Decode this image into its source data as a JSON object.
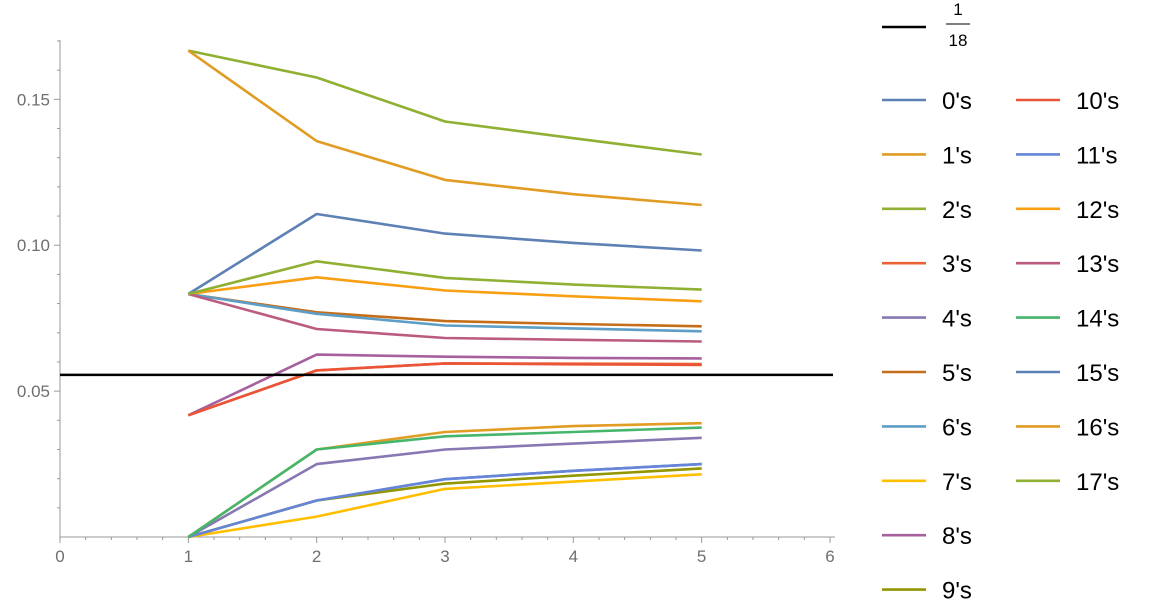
{
  "chart_data": {
    "type": "line",
    "xlim": [
      0,
      6
    ],
    "ylim": [
      0,
      0.17
    ],
    "x_ticks": [
      "0",
      "1",
      "2",
      "3",
      "4",
      "5",
      "6"
    ],
    "y_ticks": [
      {
        "value": 0.05,
        "label": "0.05"
      },
      {
        "value": 0.1,
        "label": "0.10"
      },
      {
        "value": 0.15,
        "label": "0.15"
      }
    ],
    "reference_line": {
      "value": 0.05556,
      "numerator": "1",
      "denominator": "18",
      "color": "#000000"
    },
    "x": [
      1,
      2,
      3,
      4,
      5
    ],
    "series": [
      {
        "name": "0's",
        "color": "#5e81b5",
        "values": [
          0,
          0.0125,
          0.0198,
          0.0227,
          0.025
        ]
      },
      {
        "name": "1's",
        "color": "#e19c24",
        "values": [
          0,
          0.03,
          0.036,
          0.038,
          0.039
        ]
      },
      {
        "name": "2's",
        "color": "#8fb032",
        "values": [
          0.1667,
          0.1575,
          0.1424,
          0.1367,
          0.1311
        ]
      },
      {
        "name": "3's",
        "color": "#eb6235",
        "values": [
          0.0417,
          0.0571,
          0.0595,
          0.0594,
          0.0593
        ]
      },
      {
        "name": "4's",
        "color": "#8778b3",
        "values": [
          0,
          0.025,
          0.03,
          0.032,
          0.034
        ]
      },
      {
        "name": "5's",
        "color": "#c56e1a",
        "values": [
          0.0833,
          0.077,
          0.074,
          0.073,
          0.0722
        ]
      },
      {
        "name": "6's",
        "color": "#5d9ec7",
        "values": [
          0.0833,
          0.0765,
          0.0725,
          0.0715,
          0.0705
        ]
      },
      {
        "name": "7's",
        "color": "#ffbf00",
        "values": [
          0,
          0.007,
          0.0165,
          0.019,
          0.0215
        ]
      },
      {
        "name": "8's",
        "color": "#a5609d",
        "values": [
          0.0417,
          0.0625,
          0.0618,
          0.0614,
          0.0612
        ]
      },
      {
        "name": "9's",
        "color": "#929600",
        "values": [
          0,
          0.0125,
          0.0183,
          0.021,
          0.0235
        ]
      },
      {
        "name": "10's",
        "color": "#e95536",
        "values": [
          0.0417,
          0.0571,
          0.0595,
          0.0592,
          0.059
        ]
      },
      {
        "name": "11's",
        "color": "#6685d9",
        "values": [
          0,
          0.0125,
          0.0198,
          0.0227,
          0.025
        ]
      },
      {
        "name": "12's",
        "color": "#f89f13",
        "values": [
          0.0833,
          0.089,
          0.0845,
          0.0825,
          0.0808
        ]
      },
      {
        "name": "13's",
        "color": "#bc5b80",
        "values": [
          0.0833,
          0.0713,
          0.0682,
          0.0676,
          0.067
        ]
      },
      {
        "name": "14's",
        "color": "#47b66d",
        "values": [
          0,
          0.03,
          0.0345,
          0.036,
          0.0375
        ]
      },
      {
        "name": "15's",
        "color": "#5e81b5",
        "values": [
          0.0833,
          0.1107,
          0.104,
          0.1008,
          0.0982
        ]
      },
      {
        "name": "16's",
        "color": "#e19c24",
        "values": [
          0.1667,
          0.1357,
          0.1224,
          0.1175,
          0.1138
        ]
      },
      {
        "name": "17's",
        "color": "#8fb032",
        "values": [
          0.0833,
          0.0945,
          0.0888,
          0.0865,
          0.0848
        ]
      }
    ]
  }
}
